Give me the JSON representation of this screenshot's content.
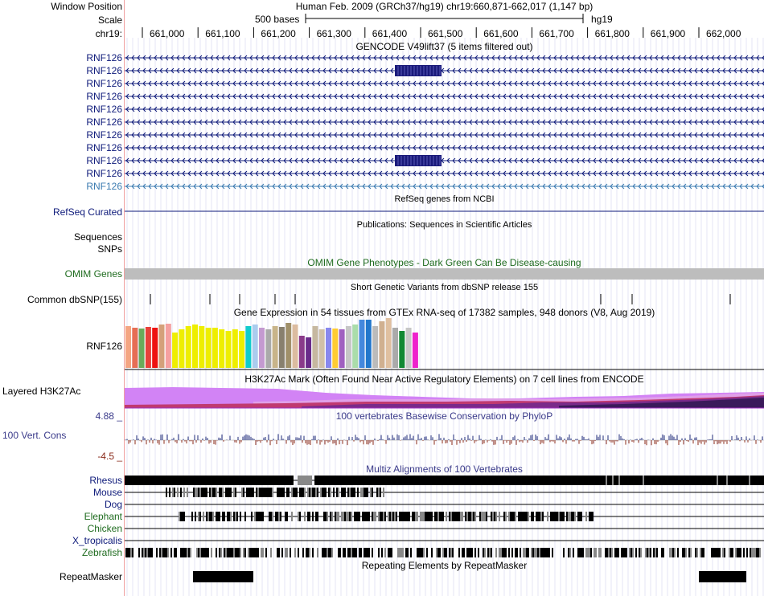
{
  "header": {
    "window_position_label": "Window Position",
    "scale_label": "Scale",
    "chrom_label": "chr19:",
    "assembly_line": "Human Feb. 2009 (GRCh37/hg19)   chr19:660,871-662,017 (1,147 bp)",
    "scale_bar_text": "500 bases",
    "scale_db": "hg19",
    "ruler_ticks": [
      "661,000",
      "661,100",
      "661,200",
      "661,300",
      "661,400",
      "661,500",
      "661,600",
      "661,700",
      "661,800",
      "661,900",
      "662,000"
    ]
  },
  "tracks": {
    "gencode": {
      "title": "GENCODE V49lift37 (5 items filtered out)",
      "items": [
        "RNF126",
        "RNF126",
        "RNF126",
        "RNF126",
        "RNF126",
        "RNF126",
        "RNF126",
        "RNF126",
        "RNF126",
        "RNF126",
        "RNF126"
      ],
      "colors": [
        "#0e1a7a",
        "#3a7ab0"
      ]
    },
    "refseq": {
      "title": "RefSeq genes from NCBI",
      "label": "RefSeq Curated"
    },
    "publications": {
      "title": "Publications: Sequences in Scientific Articles",
      "labels": [
        "Sequences",
        "SNPs"
      ]
    },
    "omim": {
      "title": "OMIM Gene Phenotypes - Dark Green Can Be Disease-causing",
      "label": "OMIM Genes",
      "color": "#1e6b1e"
    },
    "dbsnp": {
      "title": "Short Genetic Variants from dbSNP release 155",
      "label": "Common dbSNP(155)"
    },
    "gtex": {
      "title": "Gene Expression in 54 tissues from GTEx RNA-seq of 17382 samples, 948 donors (V8, Aug 2019)",
      "label": "RNF126"
    },
    "h3k27ac": {
      "title": "H3K27Ac Mark (Often Found Near Active Regulatory Elements) on 7 cell lines from ENCODE",
      "label": "Layered H3K27Ac"
    },
    "phylop": {
      "title": "100 vertebrates Basewise Conservation by PhyloP",
      "label": "100 Vert. Cons",
      "max_label": "4.88 _",
      "min_label": "-4.5 _"
    },
    "multiz": {
      "title": "Multiz Alignments of 100 Vertebrates",
      "species": [
        "Rhesus",
        "Mouse",
        "Dog",
        "Elephant",
        "Chicken",
        "X_tropicalis",
        "Zebrafish"
      ]
    },
    "repeatmasker": {
      "title": "Repeating Elements by RepeatMasker",
      "label": "RepeatMasker"
    }
  }
}
